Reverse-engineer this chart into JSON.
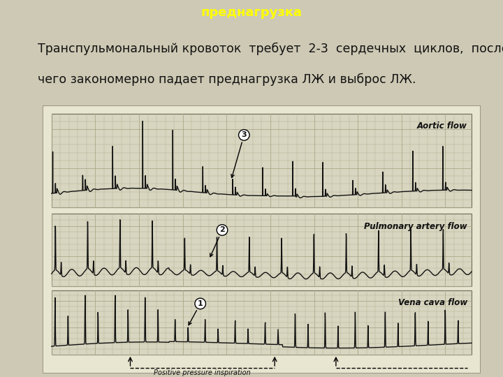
{
  "title": "преднагрузка",
  "title_color": "#FFFF00",
  "title_bg_color": "#000080",
  "body_bg_color": "#CEC9B4",
  "text_line1": "Транспульмональный кровоток  требует  2-3  сердечных  циклов,  после",
  "text_line2": "чего закономерно падает преднагрузка ЛЖ и выброс ЛЖ.",
  "text_color": "#111111",
  "text_fontsize": 12.5,
  "label_aortic": "Aortic flow",
  "label_pulmonary": "Pulmonary artery flow",
  "label_vena": "Vena cava flow",
  "label_inspiration": "Positive pressure inspiration",
  "grid_bg": "#d8d5c0",
  "grid_line": "#aaa888",
  "trace_color": "#111111",
  "panel_outer_bg": "#e8e5d0",
  "panel_border": "#666655"
}
